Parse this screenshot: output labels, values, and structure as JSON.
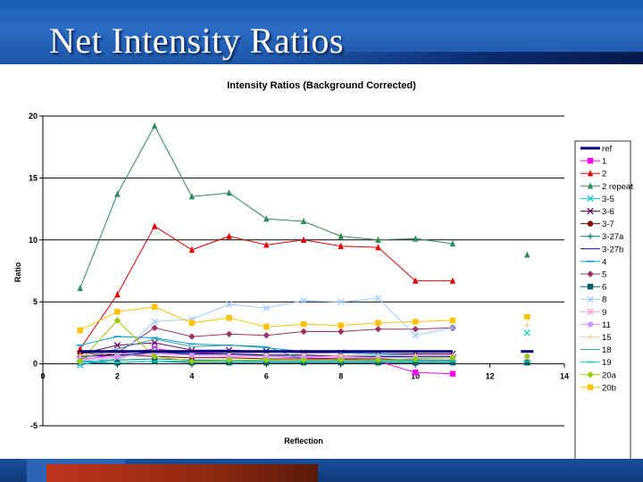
{
  "slide": {
    "title": "Net Intensity Ratios"
  },
  "chart_data": {
    "type": "line",
    "title": "Intensity Ratios (Background Corrected)",
    "xlabel": "Reflection",
    "ylabel": "Ratio",
    "xlim": [
      0,
      14
    ],
    "ylim": [
      -5,
      20
    ],
    "xticks": [
      0,
      2,
      4,
      6,
      8,
      10,
      12,
      14
    ],
    "yticks": [
      -5,
      0,
      5,
      10,
      15,
      20
    ],
    "grid": "horizontal",
    "legend_position": "right",
    "series": [
      {
        "name": "ref",
        "color": "#000080",
        "marker": "none",
        "width": 3,
        "points": [
          [
            1,
            1
          ],
          [
            2,
            1
          ],
          [
            3,
            1
          ],
          [
            4,
            1
          ],
          [
            5,
            1
          ],
          [
            6,
            1
          ],
          [
            7,
            1
          ],
          [
            8,
            1
          ],
          [
            9,
            1
          ],
          [
            10,
            1
          ],
          [
            11,
            1
          ],
          [
            13,
            1
          ]
        ]
      },
      {
        "name": "1",
        "color": "#ff00ff",
        "marker": "square",
        "points": [
          [
            1,
            0.3
          ],
          [
            2,
            0.8
          ],
          [
            3,
            1.2
          ],
          [
            4,
            0.9
          ],
          [
            5,
            0.8
          ],
          [
            6,
            0.6
          ],
          [
            7,
            0.5
          ],
          [
            8,
            0.4
          ],
          [
            9,
            0.2
          ],
          [
            10,
            -0.7
          ],
          [
            11,
            -0.8
          ]
        ]
      },
      {
        "name": "2",
        "color": "#e00000",
        "marker": "triangle",
        "points": [
          [
            1,
            1.2
          ],
          [
            2,
            5.6
          ],
          [
            3,
            11.1
          ],
          [
            4,
            9.2
          ],
          [
            5,
            10.3
          ],
          [
            6,
            9.6
          ],
          [
            7,
            10.0
          ],
          [
            8,
            9.5
          ],
          [
            9,
            9.4
          ],
          [
            10,
            6.7
          ],
          [
            11,
            6.7
          ]
        ]
      },
      {
        "name": "2 repeat",
        "color": "#2e8b57",
        "marker": "triangle",
        "points": [
          [
            1,
            6.1
          ],
          [
            2,
            13.7
          ],
          [
            3,
            19.2
          ],
          [
            4,
            13.5
          ],
          [
            5,
            13.8
          ],
          [
            6,
            11.7
          ],
          [
            7,
            11.5
          ],
          [
            8,
            10.3
          ],
          [
            9,
            10.0
          ],
          [
            10,
            10.1
          ],
          [
            11,
            9.7
          ],
          [
            13,
            8.8
          ]
        ]
      },
      {
        "name": "3-5",
        "color": "#00cccc",
        "marker": "x",
        "points": [
          [
            1,
            -0.1
          ],
          [
            2,
            0.4
          ],
          [
            3,
            1.1
          ],
          [
            4,
            0.8
          ],
          [
            5,
            0.8
          ],
          [
            6,
            0.7
          ],
          [
            7,
            0.7
          ],
          [
            8,
            0.6
          ],
          [
            9,
            0.6
          ],
          [
            10,
            0.5
          ],
          [
            11,
            0.5
          ],
          [
            13,
            2.5
          ]
        ]
      },
      {
        "name": "3-6",
        "color": "#660066",
        "marker": "x",
        "points": [
          [
            1,
            0.8
          ],
          [
            2,
            1.5
          ],
          [
            3,
            1.7
          ],
          [
            4,
            1.1
          ],
          [
            5,
            1.1
          ],
          [
            6,
            1.0
          ],
          [
            7,
            0.9
          ],
          [
            8,
            0.9
          ],
          [
            9,
            0.8
          ],
          [
            10,
            0.8
          ],
          [
            11,
            0.8
          ]
        ]
      },
      {
        "name": "3-7",
        "color": "#800000",
        "marker": "circle",
        "points": [
          [
            1,
            0.9
          ],
          [
            2,
            0.7
          ],
          [
            3,
            0.6
          ],
          [
            4,
            0.5
          ],
          [
            5,
            0.5
          ],
          [
            6,
            0.4
          ],
          [
            7,
            0.4
          ],
          [
            8,
            0.4
          ],
          [
            9,
            0.4
          ],
          [
            10,
            0.3
          ],
          [
            11,
            0.3
          ]
        ]
      },
      {
        "name": "3-27a",
        "color": "#008080",
        "marker": "plus",
        "points": [
          [
            1,
            0.2
          ],
          [
            2,
            0.3
          ],
          [
            3,
            0.4
          ],
          [
            4,
            0.3
          ],
          [
            5,
            0.3
          ],
          [
            6,
            0.2
          ],
          [
            7,
            0.2
          ],
          [
            8,
            0.2
          ],
          [
            9,
            0.2
          ],
          [
            10,
            0.2
          ],
          [
            11,
            0.2
          ]
        ]
      },
      {
        "name": "3-27b",
        "color": "#000080",
        "marker": "none",
        "points": [
          [
            1,
            0.6
          ],
          [
            2,
            0.7
          ],
          [
            3,
            0.9
          ],
          [
            4,
            0.8
          ],
          [
            5,
            0.8
          ],
          [
            6,
            0.7
          ],
          [
            7,
            0.7
          ],
          [
            8,
            0.6
          ],
          [
            9,
            0.6
          ],
          [
            10,
            0.6
          ],
          [
            11,
            0.6
          ]
        ]
      },
      {
        "name": "4",
        "color": "#00a0e0",
        "marker": "dash",
        "points": [
          [
            1,
            1.5
          ],
          [
            2,
            2.2
          ],
          [
            3,
            2.1
          ],
          [
            4,
            1.6
          ],
          [
            5,
            1.5
          ],
          [
            6,
            1.3
          ],
          [
            7,
            1.0
          ],
          [
            8,
            0.9
          ],
          [
            9,
            0.8
          ],
          [
            10,
            0.7
          ],
          [
            11,
            0.7
          ]
        ]
      },
      {
        "name": "5",
        "color": "#993366",
        "marker": "diamond",
        "points": [
          [
            1,
            0.5
          ],
          [
            2,
            0.9
          ],
          [
            3,
            2.9
          ],
          [
            4,
            2.2
          ],
          [
            5,
            2.4
          ],
          [
            6,
            2.3
          ],
          [
            7,
            2.6
          ],
          [
            8,
            2.6
          ],
          [
            9,
            2.8
          ],
          [
            10,
            2.8
          ],
          [
            11,
            2.9
          ]
        ]
      },
      {
        "name": "6",
        "color": "#006060",
        "marker": "square",
        "points": [
          [
            1,
            0.1
          ],
          [
            2,
            0.1
          ],
          [
            3,
            0.2
          ],
          [
            4,
            0.1
          ],
          [
            5,
            0.1
          ],
          [
            6,
            0.1
          ],
          [
            7,
            0.1
          ],
          [
            8,
            0.1
          ],
          [
            9,
            0.1
          ],
          [
            10,
            0.1
          ],
          [
            11,
            0.1
          ],
          [
            13,
            0.1
          ]
        ]
      },
      {
        "name": "8",
        "color": "#99ccff",
        "marker": "x",
        "points": [
          [
            1,
            0.0
          ],
          [
            2,
            0.6
          ],
          [
            3,
            3.4
          ],
          [
            4,
            3.6
          ],
          [
            5,
            4.8
          ],
          [
            6,
            4.5
          ],
          [
            7,
            5.1
          ],
          [
            8,
            5.0
          ],
          [
            9,
            5.3
          ],
          [
            10,
            2.3
          ],
          [
            11,
            2.9
          ]
        ]
      },
      {
        "name": "9",
        "color": "#ff99cc",
        "marker": "x",
        "points": [
          [
            1,
            0.3
          ],
          [
            2,
            0.5
          ],
          [
            3,
            0.9
          ],
          [
            4,
            0.7
          ],
          [
            5,
            0.7
          ],
          [
            6,
            0.6
          ],
          [
            7,
            0.6
          ],
          [
            8,
            0.6
          ],
          [
            9,
            0.5
          ],
          [
            10,
            0.5
          ],
          [
            11,
            0.5
          ],
          [
            13,
            0.5
          ]
        ]
      },
      {
        "name": "11",
        "color": "#cc99ff",
        "marker": "circle",
        "points": [
          [
            1,
            0.4
          ],
          [
            2,
            0.6
          ],
          [
            3,
            0.8
          ],
          [
            4,
            0.7
          ],
          [
            5,
            0.6
          ],
          [
            6,
            0.6
          ],
          [
            7,
            0.6
          ],
          [
            8,
            0.5
          ],
          [
            9,
            0.5
          ],
          [
            10,
            0.5
          ],
          [
            11,
            0.5
          ]
        ]
      },
      {
        "name": "15",
        "color": "#ffcc99",
        "marker": "plus",
        "points": [
          [
            1,
            0.7
          ],
          [
            2,
            0.9
          ],
          [
            3,
            1.1
          ],
          [
            4,
            1.0
          ],
          [
            5,
            0.9
          ],
          [
            6,
            0.8
          ],
          [
            7,
            0.8
          ],
          [
            8,
            0.7
          ],
          [
            9,
            0.7
          ],
          [
            10,
            0.7
          ],
          [
            11,
            0.7
          ],
          [
            13,
            3.1
          ]
        ]
      },
      {
        "name": "18",
        "color": "#339999",
        "marker": "none",
        "points": [
          [
            1,
            0.4
          ],
          [
            2,
            1.2
          ],
          [
            3,
            2.0
          ],
          [
            4,
            1.4
          ],
          [
            5,
            1.5
          ],
          [
            6,
            1.4
          ],
          [
            7,
            0.3
          ],
          [
            8,
            0.3
          ],
          [
            9,
            0.3
          ],
          [
            10,
            0.3
          ],
          [
            11,
            0.3
          ]
        ]
      },
      {
        "name": "19",
        "color": "#00cccc",
        "marker": "dash",
        "points": [
          [
            1,
            0.2
          ],
          [
            2,
            0.1
          ],
          [
            3,
            0.2
          ],
          [
            4,
            0.2
          ],
          [
            5,
            0.2
          ],
          [
            6,
            0.2
          ],
          [
            7,
            0.2
          ],
          [
            8,
            0.2
          ],
          [
            9,
            0.2
          ],
          [
            10,
            0.2
          ],
          [
            11,
            0.2
          ],
          [
            13,
            0.2
          ]
        ]
      },
      {
        "name": "20a",
        "color": "#99cc00",
        "marker": "diamond",
        "points": [
          [
            1,
            0.2
          ],
          [
            2,
            3.5
          ],
          [
            3,
            0.6
          ],
          [
            4,
            0.2
          ],
          [
            5,
            0.3
          ],
          [
            6,
            0.3
          ],
          [
            7,
            0.3
          ],
          [
            8,
            0.3
          ],
          [
            9,
            0.3
          ],
          [
            10,
            0.4
          ],
          [
            11,
            0.5
          ],
          [
            13,
            0.6
          ]
        ]
      },
      {
        "name": "20b",
        "color": "#ffc000",
        "marker": "square",
        "points": [
          [
            1,
            2.7
          ],
          [
            2,
            4.2
          ],
          [
            3,
            4.6
          ],
          [
            4,
            3.3
          ],
          [
            5,
            3.7
          ],
          [
            6,
            3.0
          ],
          [
            7,
            3.2
          ],
          [
            8,
            3.1
          ],
          [
            9,
            3.3
          ],
          [
            10,
            3.4
          ],
          [
            11,
            3.5
          ],
          [
            13,
            3.8
          ]
        ]
      }
    ]
  }
}
